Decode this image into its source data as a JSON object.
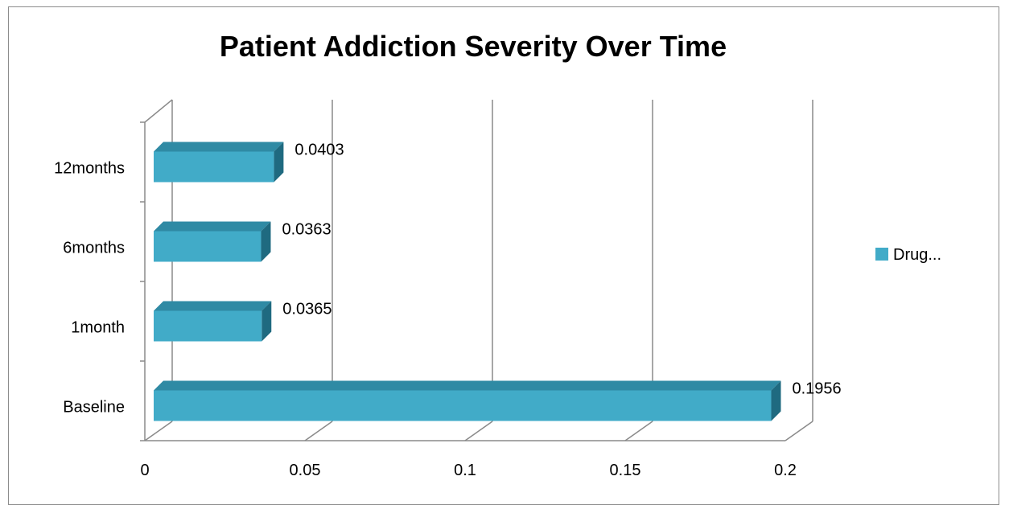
{
  "chart_data": {
    "type": "bar",
    "orientation": "horizontal",
    "style": "3d",
    "title": "Patient Addiction Severity Over Time",
    "categories": [
      "Baseline",
      "1month",
      "6months",
      "12months"
    ],
    "series": [
      {
        "name": "Drug...",
        "values": [
          0.1956,
          0.0365,
          0.0363,
          0.0403
        ],
        "labels": [
          "0.1956",
          "0.0365",
          "0.0363",
          "0.0403"
        ]
      }
    ],
    "xlim": [
      0,
      0.2
    ],
    "xticks": [
      "0",
      "0.05",
      "0.1",
      "0.15",
      "0.2"
    ],
    "grid": true,
    "legend_position": "right",
    "colors": {
      "bar_front": "#41abc8",
      "bar_top": "#2f8aa4",
      "bar_side": "#1f6a80",
      "grid": "#8a8a8a"
    }
  }
}
